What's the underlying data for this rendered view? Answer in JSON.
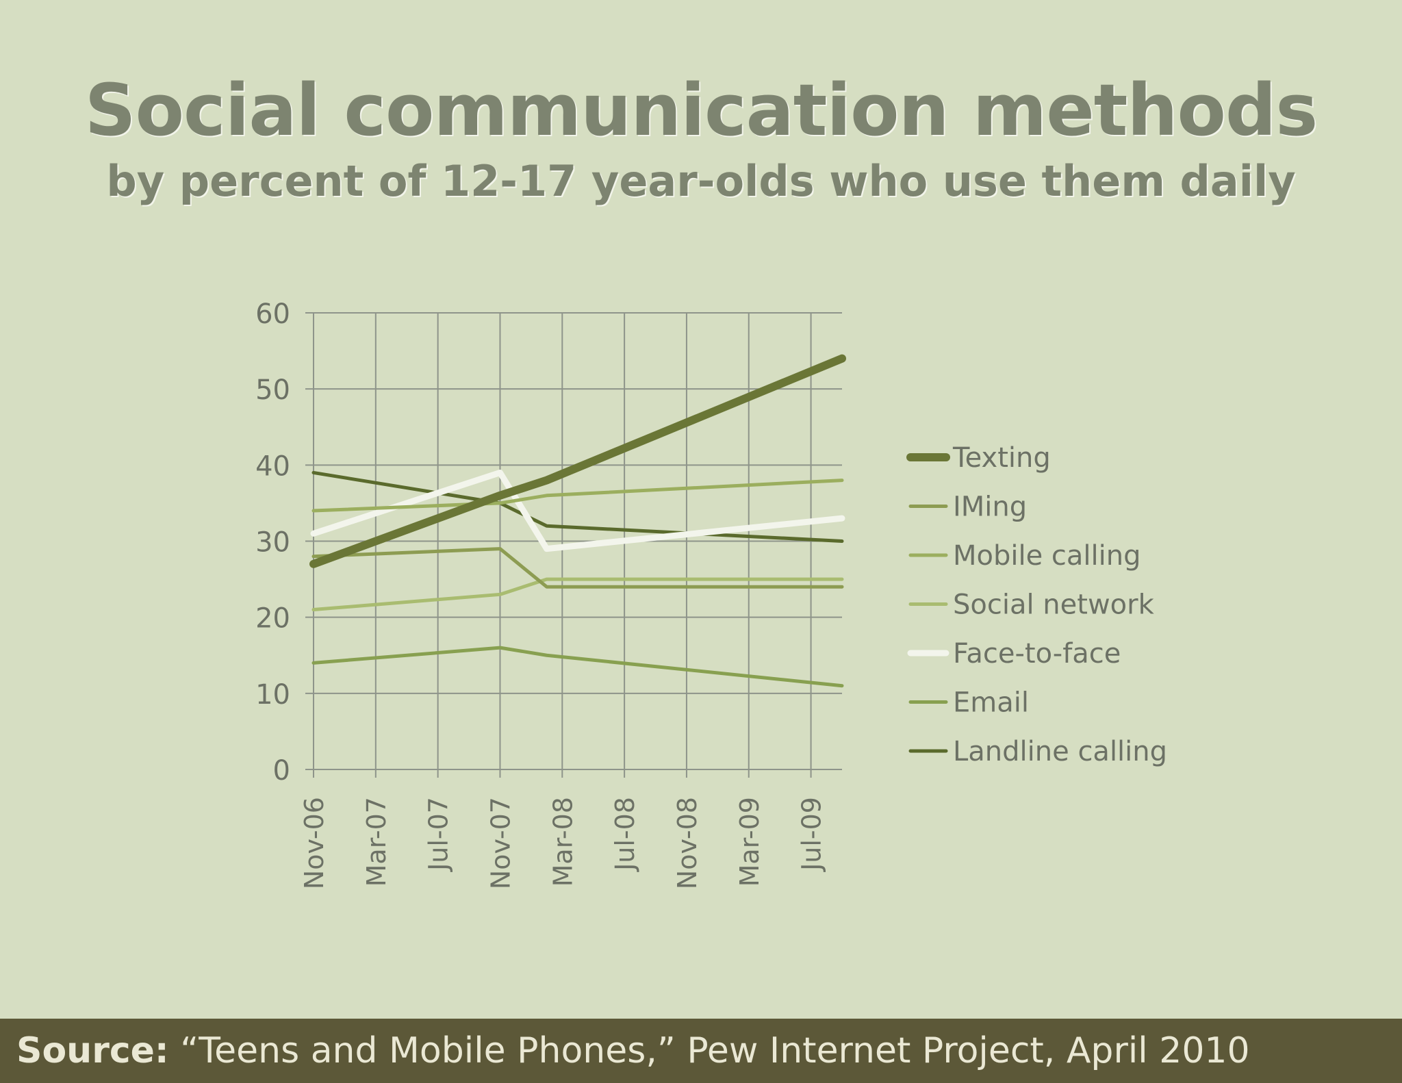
{
  "title": "Social communication methods",
  "subtitle": "by percent of 12-17 year-olds who use them daily",
  "footer": {
    "source_label": "Source:",
    "source_text": "“Teens and Mobile Phones,” Pew Internet Project, April 2010"
  },
  "chart_data": {
    "type": "line",
    "title": "Social communication methods",
    "subtitle": "by percent of 12-17 year-olds who use them daily",
    "x_ticks": [
      "Nov-06",
      "Mar-07",
      "Jul-07",
      "Nov-07",
      "Mar-08",
      "Jul-08",
      "Nov-08",
      "Mar-09",
      "Jul-09"
    ],
    "x_range": [
      "2006-11",
      "2009-09"
    ],
    "ylim": [
      0,
      60
    ],
    "y_ticks": [
      0,
      10,
      20,
      30,
      40,
      50,
      60
    ],
    "grid": true,
    "legend": "right",
    "series": [
      {
        "name": "Texting",
        "color": "#6a7636",
        "x": [
          "2006-11",
          "2007-11",
          "2008-02",
          "2009-09"
        ],
        "values": [
          27,
          36,
          38,
          54
        ]
      },
      {
        "name": "IMing",
        "color": "#8d9c52",
        "x": [
          "2006-11",
          "2007-11",
          "2008-02",
          "2009-09"
        ],
        "values": [
          28,
          29,
          24,
          24
        ]
      },
      {
        "name": "Mobile calling",
        "color": "#9bae5e",
        "x": [
          "2006-11",
          "2007-11",
          "2008-02",
          "2009-09"
        ],
        "values": [
          34,
          35,
          36,
          38
        ]
      },
      {
        "name": "Social network",
        "color": "#a9bc70",
        "x": [
          "2006-11",
          "2007-11",
          "2008-02",
          "2009-09"
        ],
        "values": [
          21,
          23,
          25,
          25
        ]
      },
      {
        "name": "Face-to-face",
        "color": "#f3f5ec",
        "x": [
          "2006-11",
          "2007-11",
          "2008-02",
          "2009-09"
        ],
        "values": [
          31,
          39,
          29,
          33
        ]
      },
      {
        "name": "Email",
        "color": "#88a050",
        "x": [
          "2006-11",
          "2007-11",
          "2008-02",
          "2009-09"
        ],
        "values": [
          14,
          16,
          15,
          11
        ]
      },
      {
        "name": "Landline calling",
        "color": "#5a6a2c",
        "x": [
          "2006-11",
          "2007-11",
          "2008-02",
          "2009-09"
        ],
        "values": [
          39,
          35,
          32,
          30
        ]
      }
    ]
  }
}
